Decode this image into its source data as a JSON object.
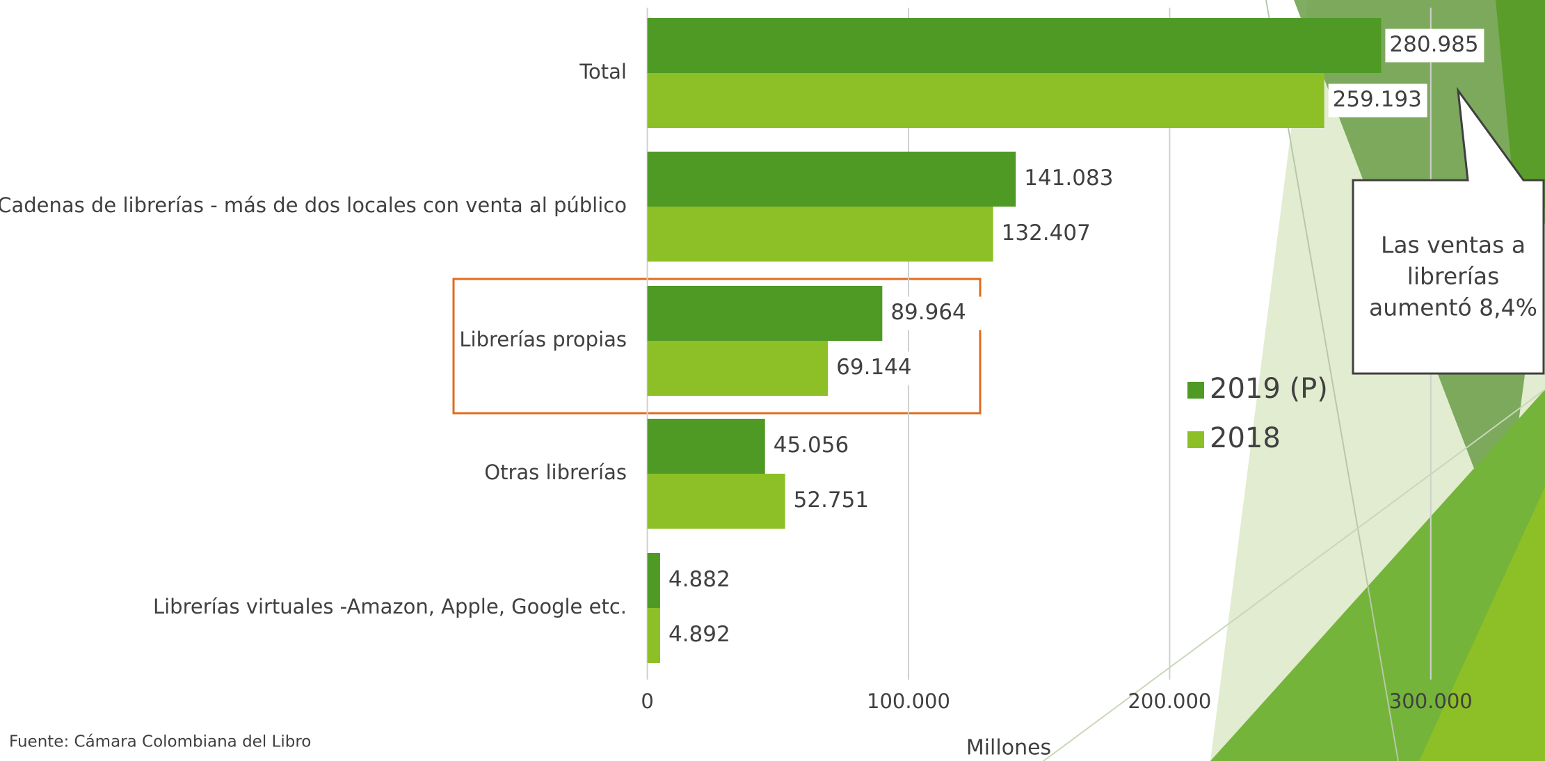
{
  "chart_data": {
    "type": "bar",
    "orientation": "horizontal",
    "categories": [
      "Total",
      "Cadenas de librerías - más de dos locales con venta al público",
      "Librerías propias",
      "Otras librerías",
      "Librerías virtuales -Amazon, Apple, Google etc."
    ],
    "series": [
      {
        "name": "2019 (P)",
        "color": "#4e9a25",
        "values": [
          280985,
          141083,
          89964,
          45056,
          4882
        ],
        "value_labels": [
          "280.985",
          "141.083",
          "89.964",
          "45.056",
          "4.882"
        ]
      },
      {
        "name": "2018",
        "color": "#8dbf26",
        "values": [
          259193,
          132407,
          69144,
          52751,
          4892
        ],
        "value_labels": [
          "259.193",
          "132.407",
          "69.144",
          "52.751",
          "4.892"
        ]
      }
    ],
    "xlim": [
      0,
      343000
    ],
    "xticks": [
      0,
      {
        "value": 100000,
        "label": "100.000"
      },
      {
        "value": 200000,
        "label": "200.000"
      },
      {
        "value": 300000,
        "label": "300.000"
      }
    ],
    "x_label": "Millones",
    "grid": true,
    "legend": "right",
    "annotation": [
      "Las ventas a",
      "librerías",
      "aumentó 8,4%"
    ],
    "source": "Fuente: Cámara Colombiana del Libro"
  }
}
